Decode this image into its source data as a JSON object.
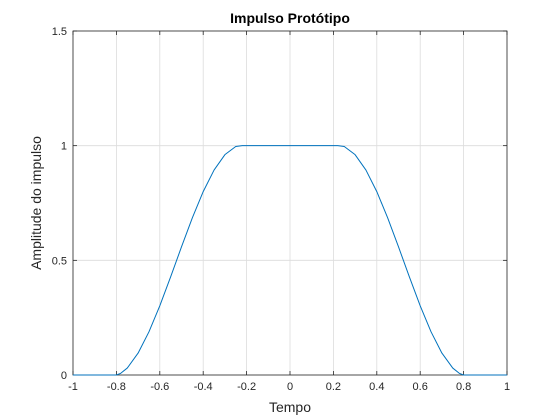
{
  "chart_data": {
    "type": "line",
    "title": "Impulso Protótipo",
    "xlabel": "Tempo",
    "ylabel": "Amplitude do impulso",
    "xlim": [
      -1,
      1
    ],
    "ylim": [
      0,
      1.5
    ],
    "xticks": [
      -1,
      -0.8,
      -0.6,
      -0.4,
      -0.2,
      0,
      0.2,
      0.4,
      0.6,
      0.8,
      1
    ],
    "xtick_labels": [
      "-1",
      "-0.8",
      "-0.6",
      "-0.4",
      "-0.2",
      "0",
      "0.2",
      "0.4",
      "0.6",
      "0.8",
      "1"
    ],
    "yticks": [
      0,
      0.5,
      1,
      1.5
    ],
    "ytick_labels": [
      "0",
      "0.5",
      "1",
      "1.5"
    ],
    "grid": true,
    "legend": "none",
    "colors": {
      "line": "#0072BD",
      "grid": "#dcdcdc",
      "axis": "#262626"
    },
    "series": [
      {
        "x": [
          -1,
          -0.9,
          -0.8,
          -0.78,
          -0.75,
          -0.7,
          -0.65,
          -0.6,
          -0.55,
          -0.5,
          -0.45,
          -0.4,
          -0.35,
          -0.3,
          -0.25,
          -0.22,
          -0.2,
          -0.1,
          0,
          0.1,
          0.2,
          0.22,
          0.25,
          0.3,
          0.35,
          0.4,
          0.45,
          0.5,
          0.55,
          0.6,
          0.65,
          0.7,
          0.75,
          0.78,
          0.8,
          0.9,
          1
        ],
        "y": [
          0,
          0,
          0,
          0.0075,
          0.0302,
          0.0955,
          0.1883,
          0.3017,
          0.428,
          0.5588,
          0.6856,
          0.7997,
          0.8937,
          0.9608,
          0.9963,
          1,
          1,
          1,
          1,
          1,
          1,
          1,
          0.9963,
          0.9608,
          0.8937,
          0.7997,
          0.6856,
          0.5588,
          0.428,
          0.3017,
          0.1883,
          0.0955,
          0.0302,
          0.0075,
          0,
          0,
          0
        ]
      }
    ]
  }
}
